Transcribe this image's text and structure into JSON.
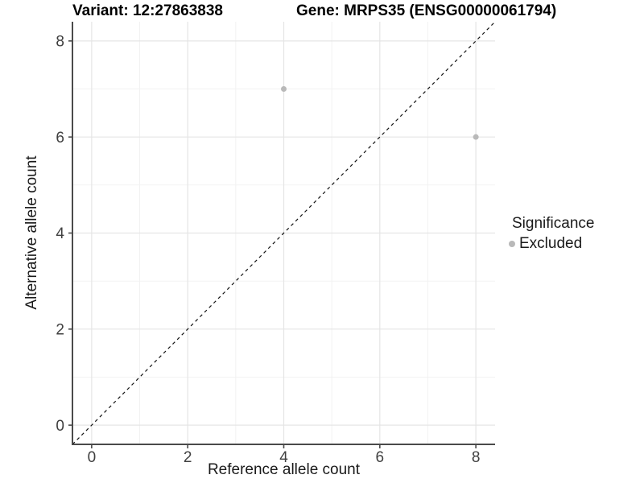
{
  "chart_data": {
    "type": "scatter",
    "titles": {
      "variant": "Variant: 12:27863838",
      "gene": "Gene: MRPS35 (ENSG00000061794)"
    },
    "xlabel": "Reference allele count",
    "ylabel": "Alternative allele count",
    "xlim": [
      -0.4,
      8.4
    ],
    "ylim": [
      -0.4,
      8.4
    ],
    "xticks": [
      0,
      2,
      4,
      6,
      8
    ],
    "yticks": [
      0,
      2,
      4,
      6,
      8
    ],
    "minor_xticks": [
      1,
      3,
      5,
      7
    ],
    "minor_yticks": [
      1,
      3,
      5,
      7
    ],
    "grid": "major+minor",
    "reference_line": {
      "type": "abline",
      "slope": 1,
      "intercept": 0,
      "style": "dashed",
      "color": "#111111"
    },
    "series": [
      {
        "name": "Excluded",
        "color": "#b9b9b9",
        "points": [
          {
            "x": 4,
            "y": 7
          },
          {
            "x": 8,
            "y": 6
          }
        ]
      }
    ],
    "legend": {
      "title": "Significance",
      "position": "right",
      "items": [
        {
          "label": "Excluded",
          "color": "#b9b9b9"
        }
      ]
    },
    "colors": {
      "background": "#ffffff",
      "axis_line": "#4a4a4a",
      "tick_mark": "#4a4a4a",
      "tick_label": "#404040",
      "grid_major": "#e5e5e5",
      "grid_minor": "#f1f1f1"
    }
  }
}
